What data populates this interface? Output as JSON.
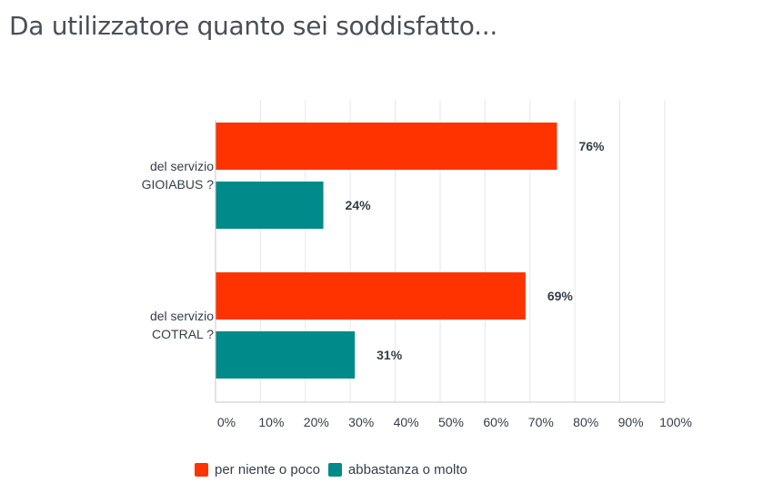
{
  "title": "Da utilizzatore quanto sei soddisfatto...",
  "chart_data": {
    "type": "bar",
    "orientation": "horizontal",
    "title": "Da utilizzatore quanto sei soddisfatto...",
    "categories": [
      [
        "del servizio",
        "GIOIABUS ?"
      ],
      [
        "del servizio",
        "COTRAL ?"
      ]
    ],
    "series": [
      {
        "name": "per niente o poco",
        "color": "#ff3300",
        "values": [
          76,
          69
        ],
        "labels": [
          "76%",
          "69%"
        ]
      },
      {
        "name": "abbastanza o molto",
        "color": "#008a8a",
        "values": [
          24,
          31
        ],
        "labels": [
          "24%",
          "31%"
        ]
      }
    ],
    "xlim": [
      0,
      100
    ],
    "xticks": [
      0,
      10,
      20,
      30,
      40,
      50,
      60,
      70,
      80,
      90,
      100
    ],
    "xtick_labels": [
      "0%",
      "10%",
      "20%",
      "30%",
      "40%",
      "50%",
      "60%",
      "70%",
      "80%",
      "90%",
      "100%"
    ],
    "grid": true,
    "legend_position": "bottom"
  }
}
